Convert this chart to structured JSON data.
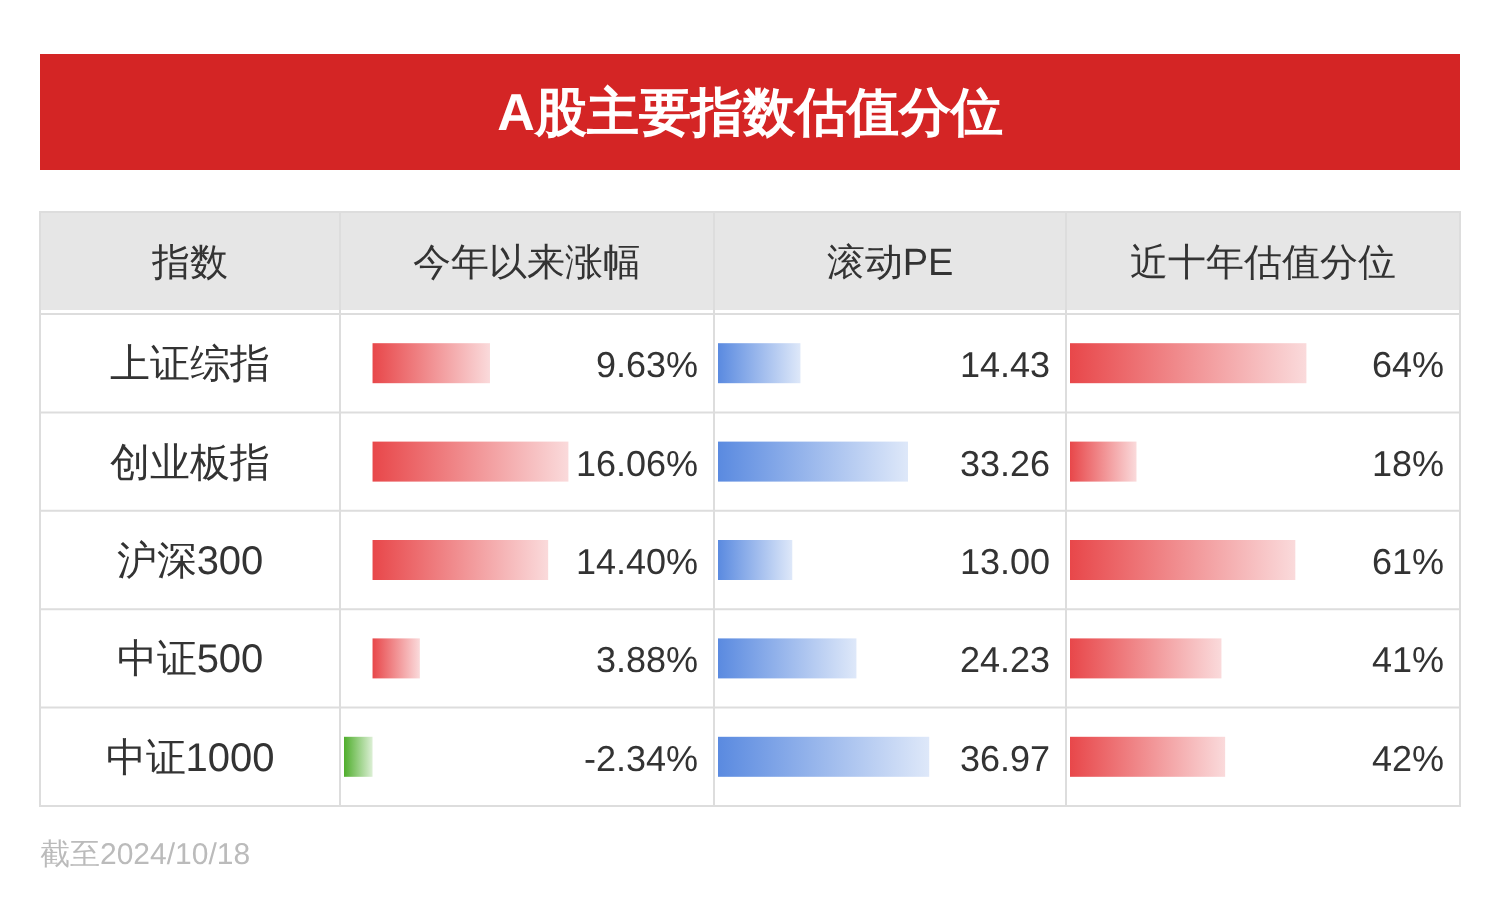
{
  "chart_data": [
    {
      "type": "other",
      "title": "A股主要指数估值分位",
      "annotations": [
        "截至2024/10/18"
      ]
    },
    {
      "type": "bar",
      "orientation": "horizontal",
      "title": "今年以来涨幅",
      "ylabel": "指数",
      "categories": [
        "上证综指",
        "创业板指",
        "沪深300",
        "中证500",
        "中证1000"
      ],
      "values": [
        9.63,
        16.06,
        14.4,
        3.88,
        -2.34
      ],
      "value_labels": [
        "9.63%",
        "16.06%",
        "14.40%",
        "3.88%",
        "-2.34%"
      ],
      "colors": [
        "#e8474a",
        "#e8474a",
        "#e8474a",
        "#e8474a",
        "#4fae2c"
      ]
    },
    {
      "type": "bar",
      "orientation": "horizontal",
      "title": "滚动PE",
      "values": [
        14.43,
        33.26,
        13.0,
        24.23,
        36.97
      ],
      "value_labels": [
        "14.43",
        "33.26",
        "13.00",
        "24.23",
        "36.97"
      ],
      "color": "#5a8ae0"
    },
    {
      "type": "bar",
      "orientation": "horizontal",
      "title": "近十年估值分位",
      "values": [
        64,
        18,
        61,
        41,
        42
      ],
      "value_labels": [
        "64%",
        "18%",
        "61%",
        "41%",
        "42%"
      ],
      "color": "#e8474a"
    }
  ]
}
